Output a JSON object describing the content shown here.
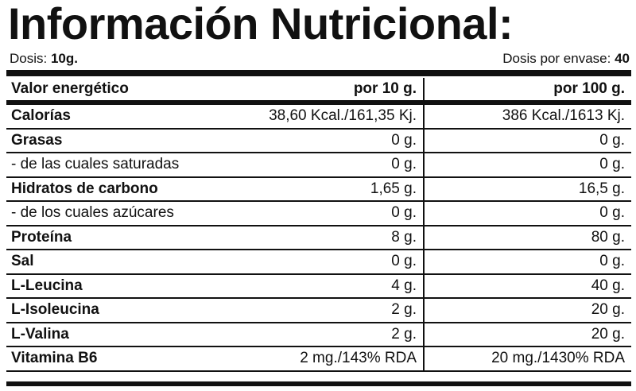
{
  "title": "Información Nutricional:",
  "dosis": {
    "label": "Dosis:",
    "value": "10g.",
    "envase_label": "Dosis por envase:",
    "envase_value": "40"
  },
  "header": {
    "name": "Valor energético",
    "col1": "por 10 g.",
    "col2": "por 100 g."
  },
  "rows": [
    {
      "name": "Calorías",
      "bold": true,
      "v10": "38,60 Kcal./161,35 Kj.",
      "v100": "386 Kcal./1613 Kj."
    },
    {
      "name": "Grasas",
      "bold": true,
      "v10": "0 g.",
      "v100": "0 g."
    },
    {
      "name": "- de las cuales saturadas",
      "bold": false,
      "v10": "0 g.",
      "v100": "0 g."
    },
    {
      "name": "Hidratos de carbono",
      "bold": true,
      "v10": "1,65 g.",
      "v100": "16,5 g."
    },
    {
      "name": "- de los cuales azúcares",
      "bold": false,
      "v10": "0 g.",
      "v100": "0 g."
    },
    {
      "name": "Proteína",
      "bold": true,
      "v10": "8 g.",
      "v100": "80 g."
    },
    {
      "name": "Sal",
      "bold": true,
      "v10": "0 g.",
      "v100": "0 g."
    },
    {
      "name": "L-Leucina",
      "bold": true,
      "v10": "4 g.",
      "v100": "40 g."
    },
    {
      "name": "L-Isoleucina",
      "bold": true,
      "v10": "2 g.",
      "v100": "20 g."
    },
    {
      "name": "L-Valina",
      "bold": true,
      "v10": "2 g.",
      "v100": "20 g."
    },
    {
      "name": "Vitamina B6",
      "bold": true,
      "v10": "2 mg./143% RDA",
      "v100": "20 mg./1430% RDA"
    }
  ]
}
